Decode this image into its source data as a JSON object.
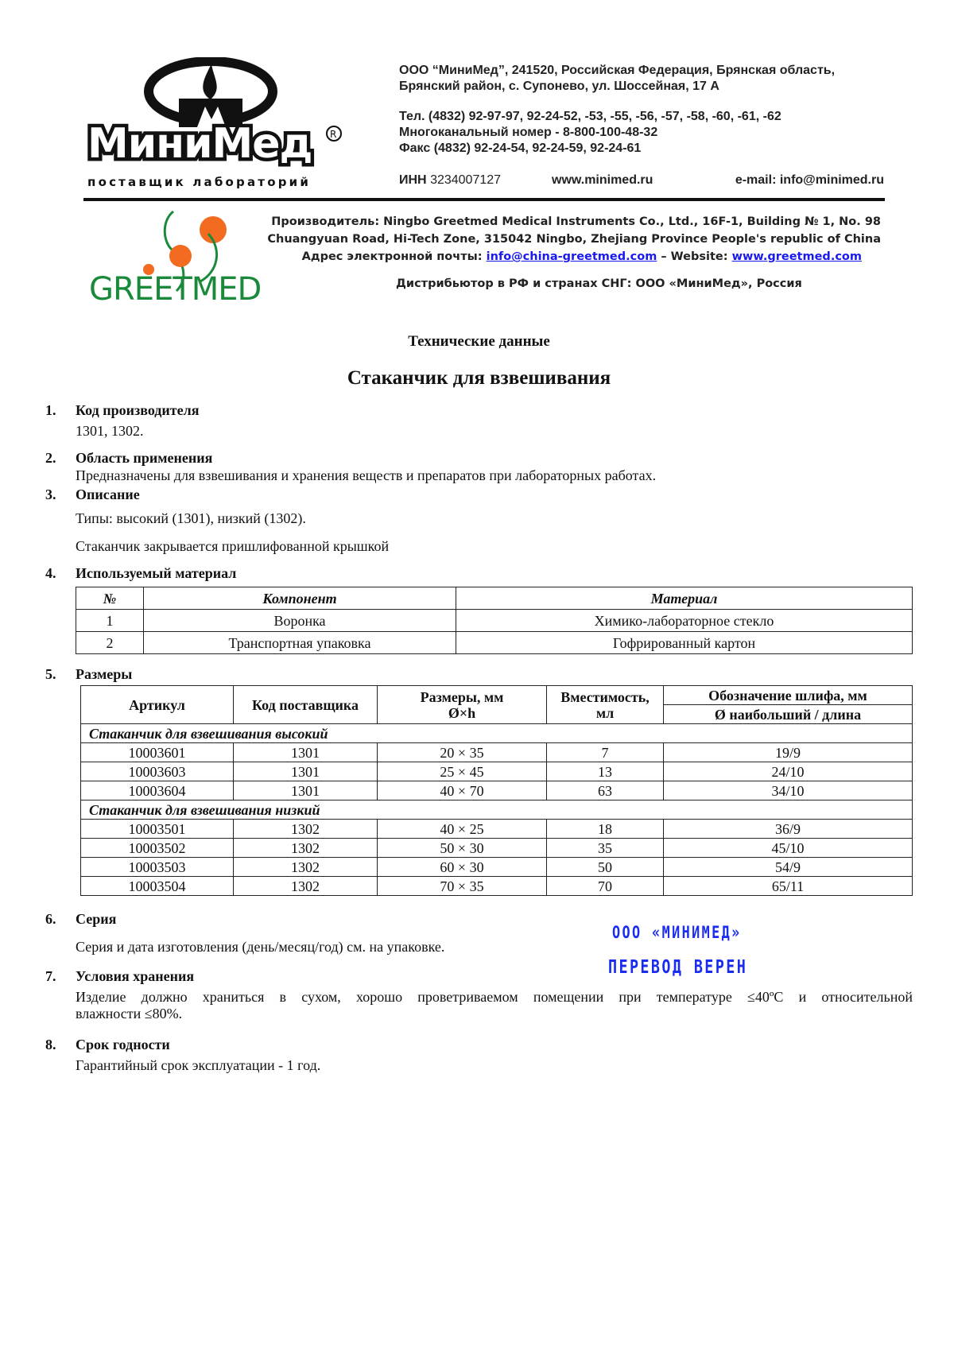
{
  "minimed": {
    "logo_text": "МиниМед",
    "logo_tagline": "поставщик лабораторий",
    "address_lines": [
      "ООО “МиниМед”, 241520, Российская Федерация, Брянская область,",
      "Брянский район, с. Супонево, ул. Шоссейная, 17 А"
    ],
    "phone_lines": [
      "Тел. (4832) 92-97-97, 92-24-52, -53, -55, -56, -57, -58, -60, -61, -62",
      "Многоканальный номер - 8-800-100-48-32",
      "Факс (4832) 92-24-54, 92-24-59, 92-24-61"
    ],
    "inn_label": "ИНН",
    "inn": "3234007127",
    "website": "www.minimed.ru",
    "email": "e-mail: info@minimed.ru"
  },
  "greetmed": {
    "logo_text": "GREETMED",
    "line1": "Производитель: Ningbo Greetmed Medical Instruments Co., Ltd., 16F-1, Building № 1, No. 98",
    "line2": "Chuangyuan Road, Hi-Tech Zone, 315042 Ningbo, Zhejiang Province People's republic of China",
    "email_label": "Адрес электронной почты:",
    "email": "info@china-greetmed.com",
    "website_label": "– Website:",
    "website": "www.greetmed.com",
    "distributor": "Дистрибьютор в РФ и странах СНГ: ООО «МиниМед», Россия"
  },
  "doc": {
    "subtitle": "Технические данные",
    "title": "Стаканчик для взвешивания",
    "sections": [
      {
        "num": "1.",
        "heading": "Код производителя",
        "lines": [
          "1301, 1302."
        ]
      },
      {
        "num": "2.",
        "heading": "Область применения",
        "lines": [
          "Предназначены для взвешивания и хранения веществ и препаратов при лабораторных работах."
        ]
      },
      {
        "num": "3.",
        "heading": "Описание",
        "lines": [
          "Типы: высокий (1301), низкий (1302).",
          "Стаканчик закрывается пришлифованной крышкой"
        ]
      },
      {
        "num": "4.",
        "heading": "Используемый материал",
        "lines": []
      },
      {
        "num": "5.",
        "heading": "Размеры",
        "lines": []
      },
      {
        "num": "6.",
        "heading": "Серия",
        "lines": [
          "Серия и дата изготовления (день/месяц/год) см. на упаковке."
        ]
      },
      {
        "num": "7.",
        "heading": "Условия хранения",
        "lines": [
          "Изделие должно храниться в сухом, хорошо проветриваемом помещении при температуре ≤40ºС и относительной",
          "влажности ≤80%."
        ]
      },
      {
        "num": "8.",
        "heading": "Срок годности",
        "lines": [
          "Гарантийный срок эксплуатации - 1 год."
        ]
      }
    ],
    "materials_table": {
      "headers": [
        "№",
        "Компонент",
        "Материал"
      ],
      "rows": [
        [
          "1",
          "Воронка",
          "Химико-лабораторное стекло"
        ],
        [
          "2",
          "Транспортная упаковка",
          "Гофрированный картон"
        ]
      ]
    },
    "sizes_table": {
      "headers": [
        "Артикул",
        "Код поставщика",
        "Размеры, мм",
        "Ø×h",
        "Вместимость,",
        "мл",
        "Обозначение шлифа, мм",
        "Ø наибольший / длина"
      ],
      "groups": [
        {
          "title": "Стаканчик для взвешивания высокий",
          "rows": [
            [
              "10003601",
              "1301",
              "20 × 35",
              "7",
              "19/9"
            ],
            [
              "10003603",
              "1301",
              "25 × 45",
              "13",
              "24/10"
            ],
            [
              "10003604",
              "1301",
              "40 × 70",
              "63",
              "34/10"
            ]
          ]
        },
        {
          "title": "Стаканчик для взвешивания низкий",
          "rows": [
            [
              "10003501",
              "1302",
              "40 × 25",
              "18",
              "36/9"
            ],
            [
              "10003502",
              "1302",
              "50 × 30",
              "35",
              "45/10"
            ],
            [
              "10003503",
              "1302",
              "60 × 30",
              "50",
              "54/9"
            ],
            [
              "10003504",
              "1302",
              "70 × 35",
              "70",
              "65/11"
            ]
          ]
        }
      ]
    },
    "stamp": {
      "line1": "ООО «МИНИМЕД»",
      "line2": "ПЕРЕВОД ВЕРЕН",
      "color": "#1a2cf0"
    }
  }
}
